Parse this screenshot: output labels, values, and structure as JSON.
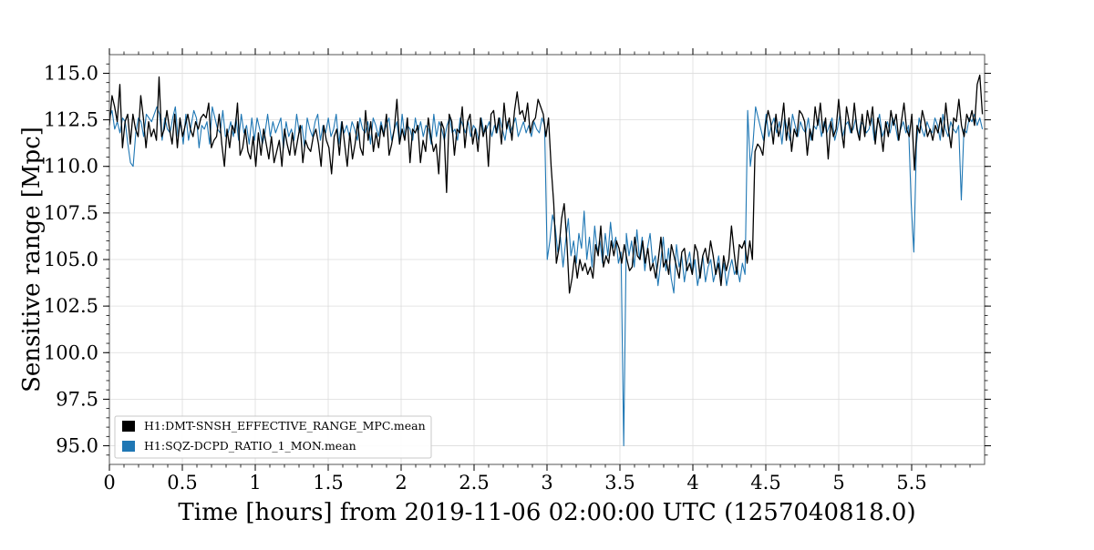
{
  "chart_data": {
    "type": "line",
    "title": "",
    "xlabel": "Time [hours] from 2019-11-06 02:00:00 UTC (1257040818.0)",
    "ylabel": "Sensitive range [Mpc]",
    "xlim": [
      0,
      6
    ],
    "ylim": [
      94,
      116
    ],
    "x_major_ticks": [
      0,
      0.5,
      1,
      1.5,
      2,
      2.5,
      3,
      3.5,
      4,
      4.5,
      5,
      5.5
    ],
    "x_tick_labels": [
      "0",
      "0.5",
      "1",
      "1.5",
      "2",
      "2.5",
      "3",
      "3.5",
      "4",
      "4.5",
      "5",
      "5.5"
    ],
    "y_major_ticks": [
      95,
      97.5,
      100,
      102.5,
      105,
      107.5,
      110,
      112.5,
      115
    ],
    "y_tick_labels": [
      "95.0",
      "97.5",
      "100.0",
      "102.5",
      "105.0",
      "107.5",
      "110.0",
      "112.5",
      "115.0"
    ],
    "grid": true,
    "legend": {
      "position": "bottom-left"
    },
    "x_step_hours": 0.01667,
    "series": [
      {
        "name": "H1:DMT-SNSH_EFFECTIVE_RANGE_MPC.mean",
        "color": "#000000",
        "values": [
          112.2,
          113.8,
          113.2,
          112.4,
          114.4,
          111.0,
          112.4,
          112.8,
          111.2,
          112.8,
          112.0,
          111.6,
          113.8,
          112.6,
          111.0,
          112.4,
          111.6,
          112.0,
          111.4,
          114.8,
          111.6,
          112.0,
          113.0,
          112.0,
          111.2,
          112.8,
          111.0,
          112.6,
          111.6,
          112.2,
          112.8,
          112.0,
          111.6,
          112.4,
          112.0,
          112.6,
          112.8,
          112.6,
          113.4,
          111.0,
          111.4,
          111.6,
          112.8,
          111.2,
          110.0,
          112.0,
          111.0,
          112.2,
          111.8,
          113.4,
          110.6,
          111.0,
          112.0,
          110.8,
          110.4,
          111.6,
          110.0,
          111.8,
          110.6,
          112.0,
          111.2,
          110.4,
          111.6,
          110.2,
          110.8,
          111.4,
          110.0,
          112.0,
          111.2,
          110.6,
          111.8,
          110.6,
          111.4,
          112.2,
          110.2,
          111.4,
          111.0,
          110.8,
          111.6,
          112.0,
          111.2,
          110.0,
          112.2,
          111.4,
          111.0,
          109.6,
          111.6,
          112.0,
          110.6,
          112.4,
          111.2,
          110.0,
          111.8,
          110.4,
          111.2,
          112.4,
          111.0,
          110.6,
          113.0,
          111.4,
          112.4,
          110.8,
          111.8,
          111.0,
          112.2,
          111.6,
          112.8,
          110.6,
          111.2,
          112.0,
          113.6,
          111.2,
          112.0,
          111.4,
          112.6,
          110.2,
          112.0,
          111.8,
          112.2,
          110.2,
          111.4,
          110.8,
          112.6,
          111.6,
          110.8,
          111.2,
          109.6,
          112.4,
          112.0,
          108.6,
          112.8,
          112.4,
          110.6,
          112.0,
          111.8,
          113.2,
          111.0,
          112.4,
          112.8,
          111.2,
          112.0,
          110.8,
          112.6,
          111.6,
          112.2,
          110.0,
          112.8,
          113.0,
          111.8,
          112.6,
          111.2,
          113.4,
          112.0,
          112.6,
          111.4,
          113.0,
          114.0,
          112.8,
          113.0,
          112.4,
          113.4,
          111.8,
          112.4,
          112.6,
          113.6,
          113.2,
          112.8,
          111.6,
          112.6,
          110.0,
          108.0,
          104.8,
          105.6,
          107.2,
          108.0,
          106.0,
          103.2,
          104.0,
          105.2,
          104.0,
          105.0,
          104.4,
          104.8,
          104.2,
          104.6,
          104.0,
          105.8,
          105.2,
          106.8,
          104.6,
          105.2,
          104.8,
          106.0,
          105.2,
          106.0,
          105.6,
          104.8,
          105.8,
          105.0,
          104.4,
          104.6,
          106.2,
          105.2,
          105.0,
          106.0,
          104.8,
          105.6,
          104.4,
          104.8,
          104.0,
          105.0,
          106.2,
          104.6,
          105.0,
          104.2,
          105.8,
          105.2,
          104.6,
          104.0,
          105.4,
          105.6,
          104.4,
          104.8,
          104.2,
          105.8,
          105.4,
          104.0,
          105.2,
          105.6,
          104.8,
          106.0,
          105.2,
          104.2,
          104.8,
          103.6,
          105.2,
          104.4,
          105.0,
          106.8,
          105.4,
          104.2,
          105.8,
          105.6,
          106.0,
          104.8,
          106.0,
          105.0,
          110.8,
          111.2,
          111.0,
          110.6,
          112.2,
          113.0,
          112.4,
          111.2,
          112.8,
          111.6,
          112.2,
          113.4,
          111.4,
          112.6,
          110.8,
          112.0,
          111.6,
          113.0,
          112.8,
          112.4,
          110.6,
          112.0,
          111.4,
          113.2,
          112.2,
          113.4,
          111.8,
          112.6,
          110.4,
          112.4,
          111.6,
          112.0,
          113.6,
          112.0,
          111.0,
          113.2,
          112.4,
          111.8,
          113.4,
          112.0,
          111.4,
          112.8,
          111.6,
          113.0,
          112.2,
          113.2,
          111.2,
          112.6,
          112.0,
          110.8,
          112.4,
          111.6,
          113.0,
          112.2,
          112.8,
          111.4,
          112.4,
          113.4,
          112.0,
          111.6,
          112.8,
          109.8,
          112.2,
          111.8,
          113.0,
          112.4,
          111.6,
          112.0,
          111.4,
          112.2,
          111.8,
          112.6,
          111.6,
          113.4,
          112.0,
          111.0,
          112.6,
          112.4,
          113.6,
          112.2,
          111.6,
          112.8,
          112.4,
          113.0,
          112.2,
          114.4,
          114.9,
          112.8
        ]
      },
      {
        "name": "H1:SQZ-DCPD_RATIO_1_MON.mean",
        "color": "#1f77b4",
        "values": [
          112.6,
          113.0,
          112.0,
          112.4,
          111.8,
          112.6,
          112.4,
          111.2,
          110.2,
          110.0,
          111.8,
          112.6,
          112.4,
          111.6,
          112.8,
          112.6,
          112.4,
          112.8,
          113.2,
          112.8,
          111.4,
          112.6,
          112.0,
          111.8,
          112.6,
          113.2,
          111.6,
          112.4,
          111.2,
          112.8,
          111.4,
          112.2,
          113.0,
          112.6,
          111.0,
          112.2,
          112.0,
          112.4,
          111.2,
          113.2,
          112.6,
          112.0,
          111.8,
          113.0,
          111.6,
          111.8,
          112.4,
          111.6,
          112.6,
          111.4,
          112.8,
          111.8,
          112.2,
          111.2,
          112.6,
          111.4,
          112.6,
          112.0,
          111.2,
          111.8,
          112.8,
          111.6,
          112.4,
          111.8,
          112.2,
          112.6,
          111.0,
          112.4,
          111.6,
          112.0,
          111.4,
          112.8,
          111.8,
          112.2,
          111.0,
          112.6,
          112.0,
          111.6,
          112.4,
          112.8,
          111.4,
          112.2,
          111.8,
          112.6,
          111.6,
          112.0,
          112.8,
          111.2,
          112.4,
          111.8,
          112.2,
          111.6,
          112.4,
          112.0,
          111.4,
          112.6,
          112.0,
          111.8,
          112.4,
          111.2,
          112.6,
          112.2,
          111.6,
          112.4,
          111.8,
          112.2,
          112.6,
          111.4,
          112.0,
          112.4,
          111.2,
          112.8,
          111.6,
          112.2,
          112.0,
          111.4,
          112.6,
          111.8,
          112.4,
          111.6,
          112.2,
          112.0,
          111.2,
          112.8,
          111.6,
          112.4,
          112.0,
          111.4,
          112.2,
          112.6,
          111.8,
          112.0,
          111.4,
          112.6,
          112.2,
          111.8,
          112.4,
          111.6,
          112.2,
          112.0,
          111.4,
          112.6,
          111.8,
          112.0,
          112.4,
          111.6,
          112.2,
          111.8,
          112.6,
          112.0,
          111.4,
          112.4,
          111.8,
          112.2,
          112.6,
          111.6,
          112.0,
          112.4,
          111.8,
          112.2,
          111.6,
          112.4,
          112.0,
          111.8,
          112.6,
          112.2,
          105.0,
          106.0,
          107.4,
          106.8,
          105.4,
          106.2,
          104.6,
          106.0,
          107.2,
          105.2,
          106.0,
          104.8,
          106.4,
          105.6,
          107.6,
          105.0,
          106.2,
          104.6,
          106.8,
          105.4,
          106.0,
          104.8,
          106.4,
          105.2,
          107.0,
          105.6,
          106.2,
          104.8,
          105.4,
          95.0,
          106.4,
          105.2,
          106.0,
          104.6,
          106.6,
          105.0,
          106.2,
          104.4,
          105.6,
          106.4,
          104.8,
          105.2,
          103.6,
          104.8,
          106.2,
          104.4,
          105.6,
          104.0,
          103.2,
          105.8,
          104.6,
          105.2,
          103.8,
          104.8,
          105.4,
          104.2,
          105.0,
          103.6,
          104.4,
          105.2,
          103.8,
          104.6,
          105.0,
          103.8,
          104.4,
          105.2,
          104.0,
          104.8,
          103.6,
          104.4,
          105.0,
          104.2,
          104.6,
          103.8,
          104.8,
          104.2,
          113.0,
          110.0,
          111.2,
          113.2,
          112.6,
          112.0,
          111.4,
          112.8,
          111.6,
          112.2,
          112.6,
          111.8,
          112.4,
          111.2,
          112.6,
          112.0,
          111.4,
          112.8,
          112.2,
          111.6,
          112.4,
          112.0,
          111.8,
          112.6,
          111.4,
          112.2,
          112.0,
          112.6,
          111.6,
          112.4,
          111.8,
          112.2,
          112.6,
          111.4,
          112.0,
          112.8,
          111.6,
          112.2,
          112.4,
          111.8,
          112.0,
          112.6,
          111.6,
          112.4,
          112.2,
          111.8,
          112.0,
          112.6,
          111.4,
          112.2,
          112.8,
          111.6,
          112.0,
          112.4,
          111.8,
          112.6,
          112.2,
          111.4,
          112.0,
          112.4,
          111.8,
          112.2,
          108.0,
          105.4,
          111.2,
          112.6,
          112.0,
          111.6,
          112.4,
          112.0,
          111.8,
          112.6,
          112.2,
          111.4,
          112.8,
          112.0,
          111.6,
          112.4,
          112.0,
          111.8,
          112.2,
          108.2,
          112.0,
          111.8,
          112.6,
          112.4,
          112.8,
          112.2,
          112.6,
          112.0
        ]
      }
    ]
  }
}
